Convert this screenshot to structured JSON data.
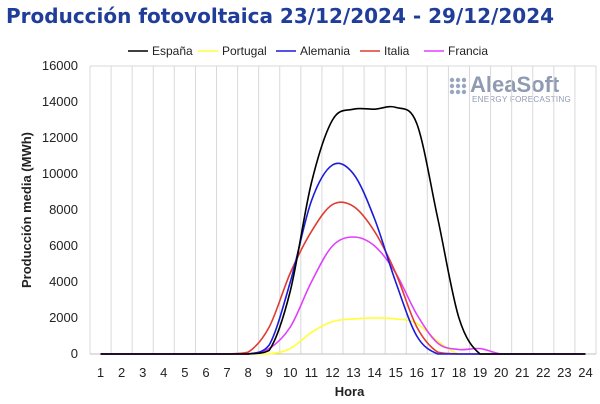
{
  "chart_data": {
    "type": "line",
    "title": "Producción fotovoltaica 23/12/2024 - 29/12/2024",
    "xlabel": "Hora",
    "ylabel": "Producción media (MWh)",
    "ylim": [
      0,
      16000
    ],
    "yticks": [
      0,
      2000,
      4000,
      6000,
      8000,
      10000,
      12000,
      14000,
      16000
    ],
    "x": [
      1,
      2,
      3,
      4,
      5,
      6,
      7,
      8,
      9,
      10,
      11,
      12,
      13,
      14,
      15,
      16,
      17,
      18,
      19,
      20,
      21,
      22,
      23,
      24
    ],
    "grid": "vertical",
    "legend_position": "top",
    "series": [
      {
        "name": "España",
        "color": "#000000",
        "values": [
          0,
          0,
          0,
          0,
          0,
          0,
          0,
          0,
          200,
          3500,
          9500,
          13000,
          13600,
          13600,
          13700,
          12800,
          7500,
          2000,
          0,
          0,
          0,
          0,
          0,
          0
        ]
      },
      {
        "name": "Portugal",
        "color": "#ffff33",
        "values": [
          0,
          0,
          0,
          0,
          0,
          0,
          0,
          0,
          0,
          300,
          1200,
          1800,
          1950,
          2000,
          1950,
          1700,
          700,
          0,
          0,
          0,
          0,
          0,
          0,
          0
        ]
      },
      {
        "name": "Alemania",
        "color": "#1a1adc",
        "values": [
          0,
          0,
          0,
          0,
          0,
          0,
          0,
          0,
          500,
          4000,
          8500,
          10500,
          10000,
          7500,
          4000,
          1000,
          0,
          0,
          0,
          0,
          0,
          0,
          0,
          0
        ]
      },
      {
        "name": "Italia",
        "color": "#e03c31",
        "values": [
          0,
          0,
          0,
          0,
          0,
          0,
          0,
          100,
          1500,
          4500,
          6800,
          8300,
          8200,
          6800,
          4500,
          1500,
          100,
          0,
          0,
          0,
          0,
          0,
          0,
          0
        ]
      },
      {
        "name": "Francia",
        "color": "#e040fb",
        "values": [
          0,
          0,
          0,
          0,
          0,
          0,
          0,
          0,
          300,
          1500,
          4000,
          6000,
          6500,
          6000,
          4500,
          2200,
          600,
          250,
          300,
          0,
          0,
          0,
          0,
          0
        ]
      }
    ],
    "watermark": {
      "text": "AleaSoft",
      "subtext": "ENERGY FORECASTING"
    }
  }
}
